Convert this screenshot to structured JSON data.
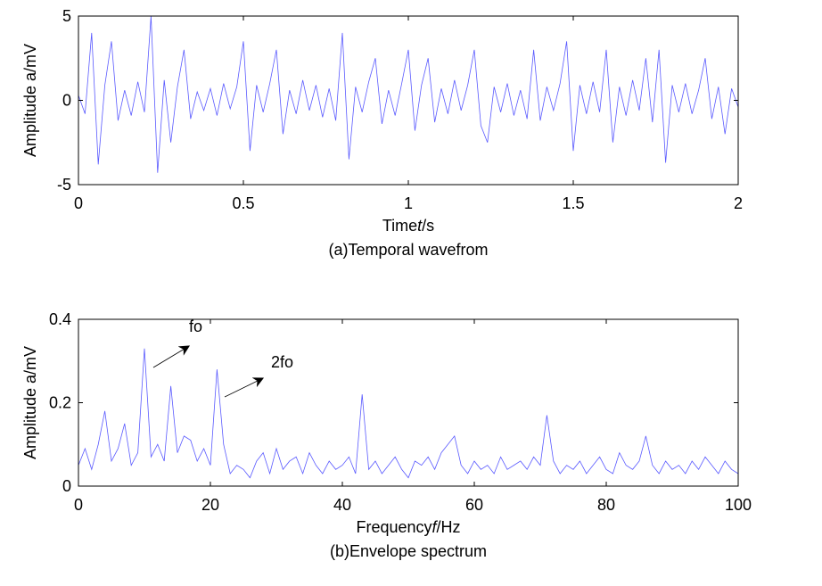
{
  "chart_data": [
    {
      "type": "line",
      "color": "#5a5aff",
      "ylabel": "Amplitude a/mV",
      "xlabel": [
        "Time",
        "t",
        "/s"
      ],
      "caption": "(a)Temporal wavefrom",
      "xlim": [
        0,
        2
      ],
      "xticks": [
        0,
        0.5,
        1,
        1.5,
        2
      ],
      "ylim": [
        -5,
        5
      ],
      "yticks": [
        -5,
        0,
        5
      ],
      "x": [
        0,
        0.02,
        0.04,
        0.06,
        0.08,
        0.1,
        0.12,
        0.14,
        0.16,
        0.18,
        0.2,
        0.22,
        0.24,
        0.26,
        0.28,
        0.3,
        0.32,
        0.34,
        0.36,
        0.38,
        0.4,
        0.42,
        0.44,
        0.46,
        0.48,
        0.5,
        0.52,
        0.54,
        0.56,
        0.58,
        0.6,
        0.62,
        0.64,
        0.66,
        0.68,
        0.7,
        0.72,
        0.74,
        0.76,
        0.78,
        0.8,
        0.82,
        0.84,
        0.86,
        0.88,
        0.9,
        0.92,
        0.94,
        0.96,
        0.98,
        1,
        1.02,
        1.04,
        1.06,
        1.08,
        1.1,
        1.12,
        1.14,
        1.16,
        1.18,
        1.2,
        1.22,
        1.24,
        1.26,
        1.28,
        1.3,
        1.32,
        1.34,
        1.36,
        1.38,
        1.4,
        1.42,
        1.44,
        1.46,
        1.48,
        1.5,
        1.52,
        1.54,
        1.56,
        1.58,
        1.6,
        1.62,
        1.64,
        1.66,
        1.68,
        1.7,
        1.72,
        1.74,
        1.76,
        1.78,
        1.8,
        1.82,
        1.84,
        1.86,
        1.88,
        1.9,
        1.92,
        1.94,
        1.96,
        1.98,
        2
      ],
      "values": [
        0.3,
        -0.8,
        4,
        -3.8,
        0.9,
        3.5,
        -1.2,
        0.6,
        -0.9,
        1.1,
        -0.7,
        5,
        -4.3,
        1.2,
        -2.5,
        0.8,
        3,
        -1.1,
        0.5,
        -0.6,
        0.7,
        -0.9,
        1,
        -0.5,
        0.8,
        3.5,
        -3,
        0.9,
        -0.7,
        1,
        3,
        -2,
        0.6,
        -0.8,
        1.2,
        -0.6,
        0.9,
        -1,
        0.7,
        -1.2,
        4,
        -3.5,
        0.8,
        -0.7,
        1.1,
        2.5,
        -1.4,
        0.6,
        -0.9,
        1,
        3,
        -1.8,
        0.9,
        2.5,
        -1.3,
        0.7,
        -0.8,
        1.2,
        -0.6,
        0.9,
        3,
        -1.5,
        -2.5,
        0.8,
        -0.7,
        1,
        -0.9,
        0.6,
        -1.1,
        3,
        -1.2,
        0.8,
        -0.6,
        1,
        3.5,
        -3,
        0.9,
        -0.8,
        1.1,
        -0.7,
        3,
        -2.5,
        0.8,
        -0.9,
        1.2,
        -0.6,
        2.5,
        -1.3,
        3,
        -3.7,
        0.9,
        -0.7,
        1,
        -0.8,
        0.6,
        2.5,
        -1.1,
        0.8,
        -2,
        0.7,
        -0.4
      ]
    },
    {
      "type": "line",
      "color": "#5a5aff",
      "ylabel": "Amplitude a/mV",
      "xlabel": [
        "Frequency",
        "f",
        "/Hz"
      ],
      "caption": "(b)Envelope spectrum",
      "xlim": [
        0,
        100
      ],
      "xticks": [
        0,
        20,
        40,
        60,
        80,
        100
      ],
      "ylim": [
        0,
        0.4
      ],
      "yticks": [
        0,
        0.2,
        0.4
      ],
      "annotations": [
        {
          "text": "fo"
        },
        {
          "text": "2fo"
        }
      ],
      "x": [
        0,
        1,
        2,
        3,
        4,
        5,
        6,
        7,
        8,
        9,
        10,
        11,
        12,
        13,
        14,
        15,
        16,
        17,
        18,
        19,
        20,
        21,
        22,
        23,
        24,
        25,
        26,
        27,
        28,
        29,
        30,
        31,
        32,
        33,
        34,
        35,
        36,
        37,
        38,
        39,
        40,
        41,
        42,
        43,
        44,
        45,
        46,
        47,
        48,
        49,
        50,
        51,
        52,
        53,
        54,
        55,
        56,
        57,
        58,
        59,
        60,
        61,
        62,
        63,
        64,
        65,
        66,
        67,
        68,
        69,
        70,
        71,
        72,
        73,
        74,
        75,
        76,
        77,
        78,
        79,
        80,
        81,
        82,
        83,
        84,
        85,
        86,
        87,
        88,
        89,
        90,
        91,
        92,
        93,
        94,
        95,
        96,
        97,
        98,
        99,
        100
      ],
      "values": [
        0.05,
        0.09,
        0.04,
        0.1,
        0.18,
        0.06,
        0.09,
        0.15,
        0.05,
        0.08,
        0.33,
        0.07,
        0.1,
        0.06,
        0.24,
        0.08,
        0.12,
        0.11,
        0.06,
        0.09,
        0.05,
        0.28,
        0.1,
        0.03,
        0.05,
        0.04,
        0.02,
        0.06,
        0.08,
        0.03,
        0.09,
        0.04,
        0.06,
        0.07,
        0.03,
        0.08,
        0.05,
        0.03,
        0.06,
        0.04,
        0.05,
        0.07,
        0.03,
        0.22,
        0.04,
        0.06,
        0.03,
        0.05,
        0.07,
        0.04,
        0.02,
        0.06,
        0.05,
        0.07,
        0.04,
        0.08,
        0.1,
        0.12,
        0.05,
        0.03,
        0.06,
        0.04,
        0.05,
        0.03,
        0.07,
        0.04,
        0.05,
        0.06,
        0.04,
        0.07,
        0.05,
        0.17,
        0.06,
        0.03,
        0.05,
        0.04,
        0.06,
        0.03,
        0.05,
        0.07,
        0.04,
        0.03,
        0.08,
        0.05,
        0.04,
        0.06,
        0.12,
        0.05,
        0.03,
        0.06,
        0.04,
        0.05,
        0.03,
        0.06,
        0.04,
        0.07,
        0.05,
        0.03,
        0.06,
        0.04,
        0.03
      ]
    }
  ]
}
